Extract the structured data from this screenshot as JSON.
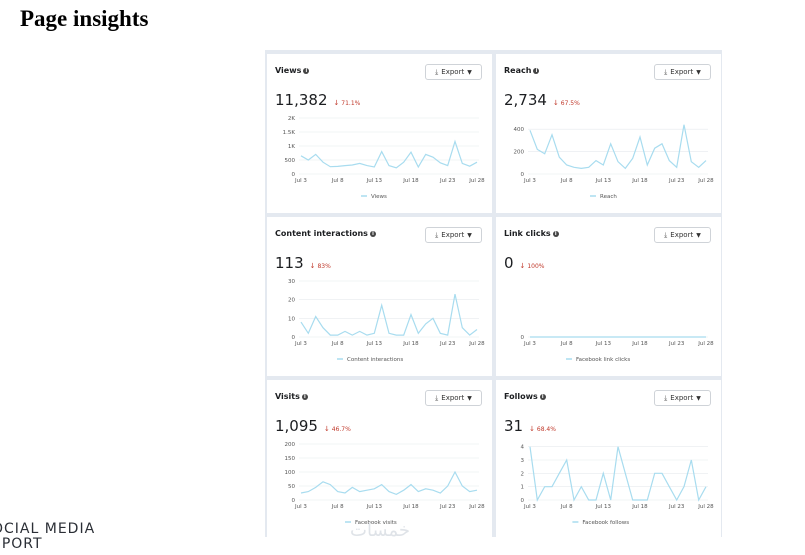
{
  "page": {
    "title": "Page insights"
  },
  "export_label": "Export",
  "brand": {
    "line1": "OCIAL MEDIA",
    "line2": "EPORT"
  },
  "watermark": "خمسات",
  "cards": [
    {
      "id": "views",
      "title": "Views",
      "value": "11,382",
      "change": "71.1%",
      "legend": "Views",
      "chart_data": {
        "type": "line",
        "yticks": [
          "2K",
          "1.5K",
          "1K",
          "500",
          "0"
        ],
        "ylim": [
          0,
          2000
        ],
        "xticks": [
          "Jul 3",
          "Jul 8",
          "Jul 13",
          "Jul 18",
          "Jul 23",
          "Jul 28"
        ],
        "series": [
          {
            "name": "Views",
            "color": "#a8dcef",
            "values": [
              650,
              500,
              700,
              420,
              260,
              270,
              300,
              320,
              380,
              300,
              250,
              800,
              300,
              220,
              420,
              780,
              250,
              700,
              600,
              400,
              300,
              1160,
              380,
              280,
              420
            ]
          }
        ]
      }
    },
    {
      "id": "reach",
      "title": "Reach",
      "value": "2,734",
      "change": "67.5%",
      "legend": "Reach",
      "chart_data": {
        "type": "line",
        "yticks": [
          "400",
          "200",
          "0"
        ],
        "ylim": [
          0,
          500
        ],
        "xticks": [
          "Jul 3",
          "Jul 8",
          "Jul 13",
          "Jul 18",
          "Jul 23",
          "Jul 28"
        ],
        "series": [
          {
            "name": "Reach",
            "color": "#a8dcef",
            "values": [
              390,
              220,
              180,
              350,
              150,
              80,
              60,
              50,
              60,
              120,
              80,
              270,
              110,
              50,
              140,
              330,
              80,
              230,
              270,
              120,
              60,
              440,
              110,
              60,
              120
            ]
          }
        ]
      }
    },
    {
      "id": "content",
      "title": "Content interactions",
      "value": "113",
      "change": "83%",
      "legend": "Content interactions",
      "chart_data": {
        "type": "line",
        "yticks": [
          "30",
          "20",
          "10",
          "0"
        ],
        "ylim": [
          0,
          30
        ],
        "xticks": [
          "Jul 3",
          "Jul 8",
          "Jul 13",
          "Jul 18",
          "Jul 23",
          "Jul 28"
        ],
        "series": [
          {
            "name": "Content interactions",
            "color": "#a8dcef",
            "values": [
              8,
              2,
              11,
              5,
              1,
              1,
              3,
              1,
              3,
              1,
              2,
              17,
              2,
              1,
              1,
              12,
              2,
              7,
              10,
              2,
              1,
              23,
              5,
              1,
              4
            ]
          }
        ]
      }
    },
    {
      "id": "link",
      "title": "Link clicks",
      "value": "0",
      "change": "100%",
      "legend": "Facebook link clicks",
      "chart_data": {
        "type": "line",
        "yticks": [
          "0"
        ],
        "ylim": [
          0,
          1
        ],
        "xticks": [
          "Jul 3",
          "Jul 8",
          "Jul 13",
          "Jul 18",
          "Jul 23",
          "Jul 28"
        ],
        "series": [
          {
            "name": "Facebook link clicks",
            "color": "#a8dcef",
            "values": [
              0,
              0,
              0,
              0,
              0,
              0,
              0,
              0,
              0,
              0,
              0,
              0,
              0,
              0,
              0,
              0,
              0,
              0,
              0,
              0,
              0,
              0,
              0,
              0,
              0
            ]
          }
        ]
      }
    },
    {
      "id": "visits",
      "title": "Visits",
      "value": "1,095",
      "change": "46.7%",
      "legend": "Facebook visits",
      "chart_data": {
        "type": "line",
        "yticks": [
          "200",
          "150",
          "100",
          "50",
          "0"
        ],
        "ylim": [
          0,
          200
        ],
        "xticks": [
          "Jul 3",
          "Jul 8",
          "Jul 13",
          "Jul 18",
          "Jul 23",
          "Jul 28"
        ],
        "series": [
          {
            "name": "Facebook visits",
            "color": "#a8dcef",
            "values": [
              25,
              30,
              45,
              65,
              55,
              30,
              25,
              45,
              30,
              35,
              40,
              55,
              30,
              20,
              35,
              55,
              30,
              40,
              35,
              25,
              50,
              100,
              50,
              30,
              35
            ]
          }
        ]
      }
    },
    {
      "id": "follows",
      "title": "Follows",
      "value": "31",
      "change": "68.4%",
      "legend": "Facebook follows",
      "chart_data": {
        "type": "line",
        "yticks": [
          "4",
          "3",
          "2",
          "1",
          "0"
        ],
        "ylim": [
          0,
          4.2
        ],
        "xticks": [
          "Jul 3",
          "Jul 8",
          "Jul 13",
          "Jul 18",
          "Jul 23",
          "Jul 28"
        ],
        "series": [
          {
            "name": "Facebook follows",
            "color": "#a8dcef",
            "values": [
              4,
              0,
              1,
              1,
              2,
              3,
              0,
              1,
              0,
              0,
              2,
              0,
              4,
              2,
              0,
              0,
              0,
              2,
              2,
              1,
              0,
              1,
              3,
              0,
              1
            ]
          }
        ]
      }
    }
  ]
}
